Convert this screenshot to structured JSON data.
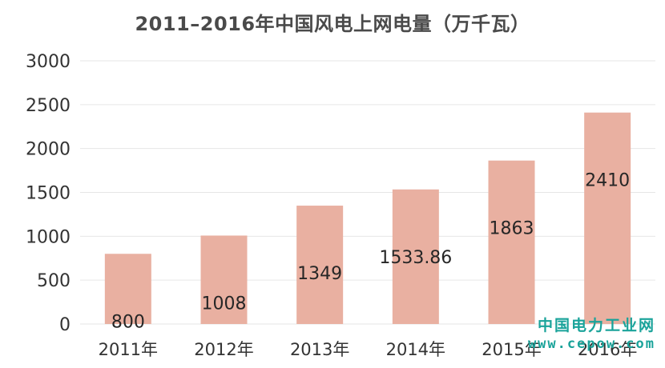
{
  "chart_data": {
    "type": "bar",
    "title": "2011–2016年中国风电上网电量（万千瓦）",
    "categories": [
      "2011年",
      "2012年",
      "2013年",
      "2014年",
      "2015年",
      "2016年"
    ],
    "values": [
      800,
      1008,
      1349,
      1533.86,
      1863,
      2410
    ],
    "data_labels": [
      "800",
      "1008",
      "1349",
      "1533.86",
      "1863",
      "2410"
    ],
    "yticks": [
      "0",
      "500",
      "1000",
      "1500",
      "2000",
      "2500",
      "3000"
    ],
    "ylim": [
      0,
      3000
    ],
    "grid": true,
    "legend": "none",
    "bar_color": "#e9b0a1",
    "grid_color": "#e6e6e6"
  },
  "watermark": {
    "name": "中国电力工业网",
    "url": "www.cepow.com",
    "color": "#1aa39a"
  }
}
